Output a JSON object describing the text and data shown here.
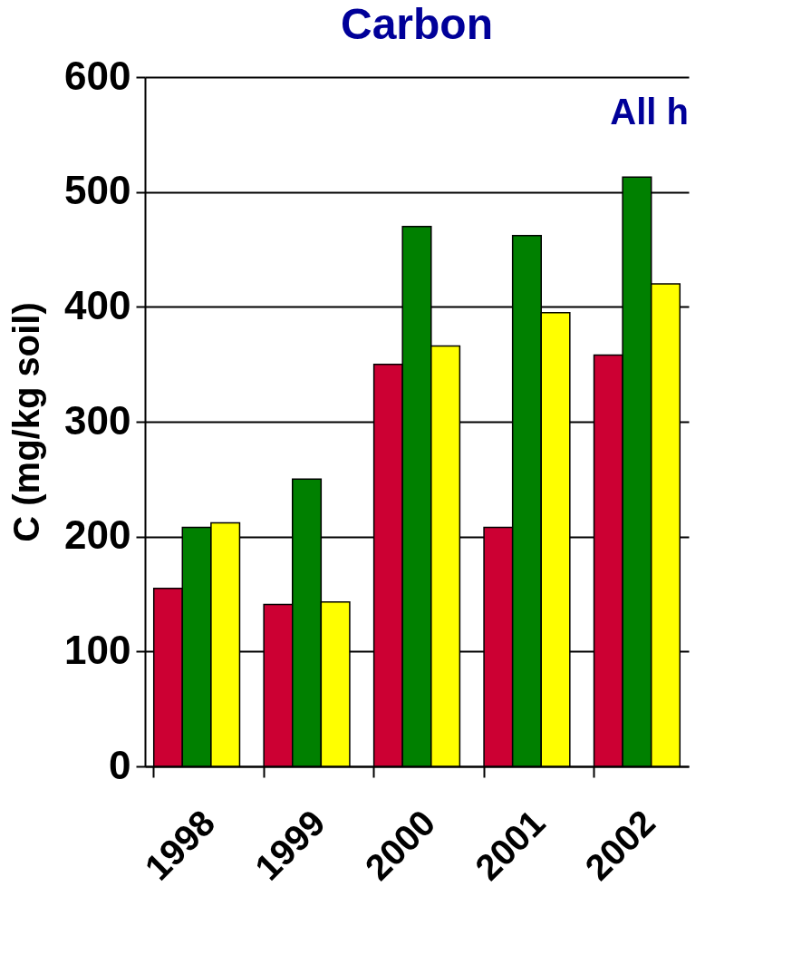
{
  "chart_data": {
    "type": "bar",
    "title": "Carbon",
    "ylabel": "C (mg/kg soil)",
    "annotations": [
      "All h"
    ],
    "categories": [
      "1998",
      "1999",
      "2000",
      "2001",
      "2002"
    ],
    "series": [
      {
        "color": "#cc0033",
        "values": [
          155,
          141,
          350,
          208,
          358
        ]
      },
      {
        "color": "#008000",
        "values": [
          208,
          250,
          470,
          462,
          513
        ]
      },
      {
        "color": "#ffff00",
        "values": [
          212,
          143,
          366,
          395,
          420
        ]
      }
    ],
    "ylim": [
      0,
      600
    ],
    "yticks": [
      0,
      100,
      200,
      300,
      400,
      500,
      600
    ],
    "grid": "y",
    "legend": false
  }
}
